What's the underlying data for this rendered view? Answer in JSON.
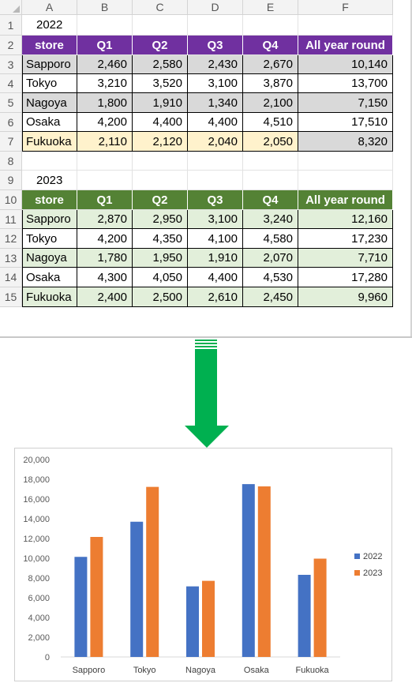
{
  "columns": [
    "A",
    "B",
    "C",
    "D",
    "E",
    "F"
  ],
  "rows": [
    "1",
    "2",
    "3",
    "4",
    "5",
    "6",
    "7",
    "8",
    "9",
    "10",
    "11",
    "12",
    "13",
    "14",
    "15"
  ],
  "table_2022": {
    "year_label": "2022",
    "headers": [
      "store",
      "Q1",
      "Q2",
      "Q3",
      "Q4",
      "All year round"
    ],
    "rows": [
      [
        "Sapporo",
        "2,460",
        "2,580",
        "2,430",
        "2,670",
        "10,140"
      ],
      [
        "Tokyo",
        "3,210",
        "3,520",
        "3,100",
        "3,870",
        "13,700"
      ],
      [
        "Nagoya",
        "1,800",
        "1,910",
        "1,340",
        "2,100",
        "7,150"
      ],
      [
        "Osaka",
        "4,200",
        "4,400",
        "4,400",
        "4,510",
        "17,510"
      ],
      [
        "Fukuoka",
        "2,110",
        "2,120",
        "2,040",
        "2,050",
        "8,320"
      ]
    ],
    "header_color": "#7030a0",
    "band_color": "#d9d9d9",
    "highlight_color": "#fff2cc"
  },
  "table_2023": {
    "year_label": "2023",
    "headers": [
      "store",
      "Q1",
      "Q2",
      "Q3",
      "Q4",
      "All year round"
    ],
    "rows": [
      [
        "Sapporo",
        "2,870",
        "2,950",
        "3,100",
        "3,240",
        "12,160"
      ],
      [
        "Tokyo",
        "4,200",
        "4,350",
        "4,100",
        "4,580",
        "17,230"
      ],
      [
        "Nagoya",
        "1,780",
        "1,950",
        "1,910",
        "2,070",
        "7,710"
      ],
      [
        "Osaka",
        "4,300",
        "4,050",
        "4,400",
        "4,530",
        "17,280"
      ],
      [
        "Fukuoka",
        "2,400",
        "2,500",
        "2,610",
        "2,450",
        "9,960"
      ]
    ],
    "header_color": "#548235",
    "band_color": "#e2efda"
  },
  "arrow_color": "#00b050",
  "chart_data": {
    "type": "bar",
    "categories": [
      "Sapporo",
      "Tokyo",
      "Nagoya",
      "Osaka",
      "Fukuoka"
    ],
    "series": [
      {
        "name": "2022",
        "values": [
          10140,
          13700,
          7150,
          17510,
          8320
        ],
        "color": "#4472c4"
      },
      {
        "name": "2023",
        "values": [
          12160,
          17230,
          7710,
          17280,
          9960
        ],
        "color": "#ed7d31"
      }
    ],
    "ylim": [
      0,
      20000
    ],
    "yticks": [
      "0",
      "2,000",
      "4,000",
      "6,000",
      "8,000",
      "10,000",
      "12,000",
      "14,000",
      "16,000",
      "18,000",
      "20,000"
    ],
    "grid": false,
    "legend": "right"
  }
}
